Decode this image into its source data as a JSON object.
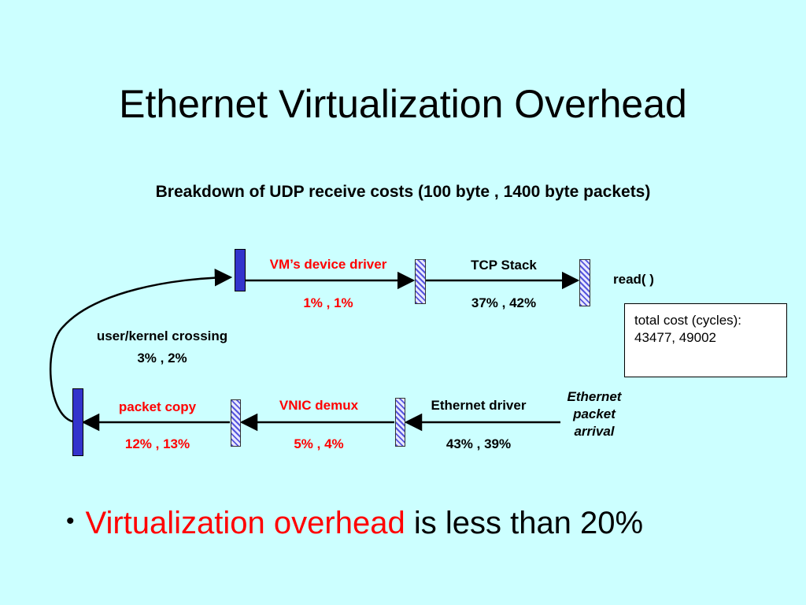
{
  "slide": {
    "title": "Ethernet Virtualization Overhead",
    "subtitle": "Breakdown of UDP receive costs (100 byte , 1400 byte packets)"
  },
  "diagram": {
    "top_row": {
      "vm_driver": {
        "label": "VM’s device driver",
        "value": "1% , 1%"
      },
      "tcp_stack": {
        "label": "TCP Stack",
        "value": "37% , 42%"
      },
      "read": {
        "label": "read( )"
      }
    },
    "crossing": {
      "label": "user/kernel crossing",
      "value": "3% , 2%"
    },
    "bottom_row": {
      "packet_copy": {
        "label": "packet copy",
        "value": "12% , 13%"
      },
      "vnic_demux": {
        "label": "VNIC demux",
        "value": "5% , 4%"
      },
      "eth_driver": {
        "label": "Ethernet driver",
        "value": "43% , 39%"
      },
      "arrival": {
        "line1": "Ethernet",
        "line2": "packet",
        "line3": "arrival"
      }
    },
    "total_cost": {
      "line1": "total cost (cycles):",
      "line2": "43477, 49002"
    }
  },
  "bullet": {
    "highlight": "Virtualization overhead",
    "rest": " is less than 20%",
    "highlight_color": "#ff0000"
  }
}
